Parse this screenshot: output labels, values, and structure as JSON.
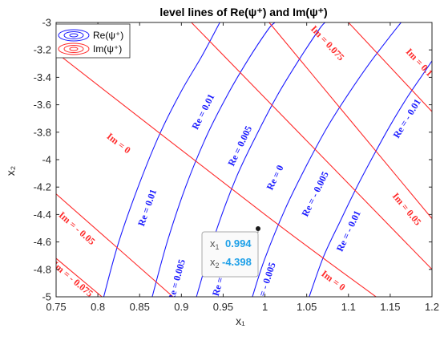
{
  "chart_data": {
    "type": "contour",
    "title": "level lines of Re(ψ⁺) and Im(ψ⁺)",
    "xlabel": "x₁",
    "ylabel": "x₂",
    "xlim": [
      0.75,
      1.2
    ],
    "ylim": [
      -5,
      -3
    ],
    "xticks": [
      "0.75",
      "0.8",
      "0.85",
      "0.9",
      "0.95",
      "1",
      "1.05",
      "1.1",
      "1.15",
      "1.2"
    ],
    "yticks": [
      "-3",
      "-3.2",
      "-3.4",
      "-3.6",
      "-3.8",
      "-4",
      "-4.2",
      "-4.4",
      "-4.6",
      "-4.8",
      "-5"
    ],
    "grid": false,
    "legend": {
      "placement": "top-left",
      "entries": [
        {
          "name": "Re(ψ⁺)",
          "color": "#1a1aff"
        },
        {
          "name": "Im(ψ⁺)",
          "color": "#ff2a2a"
        }
      ]
    },
    "series": [
      {
        "name": "Re(ψ⁺)",
        "color": "#1a1aff",
        "levels": [
          {
            "label": "Re = 0.01",
            "points": [
              [
                0.807,
                -5.0
              ],
              [
                0.825,
                -4.6
              ],
              [
                0.85,
                -4.17
              ],
              [
                0.875,
                -3.8
              ],
              [
                0.9,
                -3.5
              ],
              [
                0.925,
                -3.24
              ],
              [
                0.946,
                -3.0
              ]
            ]
          },
          {
            "label": "Re = 0.005",
            "points": [
              [
                0.865,
                -5.0
              ],
              [
                0.883,
                -4.6
              ],
              [
                0.905,
                -4.2
              ],
              [
                0.93,
                -3.83
              ],
              [
                0.955,
                -3.53
              ],
              [
                0.98,
                -3.27
              ],
              [
                1.004,
                -3.05
              ],
              [
                1.012,
                -3.0
              ]
            ]
          },
          {
            "label": "Re = 0",
            "points": [
              [
                0.918,
                -5.0
              ],
              [
                0.94,
                -4.55
              ],
              [
                0.965,
                -4.14
              ],
              [
                0.99,
                -3.82
              ],
              [
                1.015,
                -3.53
              ],
              [
                1.04,
                -3.28
              ],
              [
                1.065,
                -3.05
              ],
              [
                1.072,
                -3.0
              ]
            ]
          },
          {
            "label": "Re = - 0.005",
            "points": [
              [
                0.985,
                -5.0
              ],
              [
                1.0,
                -4.72
              ],
              [
                1.025,
                -4.35
              ],
              [
                1.05,
                -4.04
              ],
              [
                1.075,
                -3.76
              ],
              [
                1.1,
                -3.52
              ],
              [
                1.125,
                -3.3
              ],
              [
                1.15,
                -3.1
              ],
              [
                1.163,
                -3.0
              ]
            ]
          },
          {
            "label": "Re = - 0.01",
            "points": [
              [
                1.053,
                -5.0
              ],
              [
                1.07,
                -4.71
              ],
              [
                1.09,
                -4.45
              ],
              [
                1.11,
                -4.2
              ],
              [
                1.13,
                -3.97
              ],
              [
                1.15,
                -3.75
              ],
              [
                1.17,
                -3.55
              ],
              [
                1.19,
                -3.37
              ],
              [
                1.2,
                -3.28
              ]
            ]
          }
        ]
      },
      {
        "name": "Im(ψ⁺)",
        "color": "#ff2a2a",
        "levels": [
          {
            "label": "Im = 0.1",
            "points": [
              [
                1.1,
                -3.0
              ],
              [
                1.2,
                -3.65
              ]
            ]
          },
          {
            "label": "Im = 0.075",
            "points": [
              [
                1.005,
                -3.0
              ],
              [
                1.2,
                -4.43
              ]
            ]
          },
          {
            "label": "Im = 0.05",
            "points": [
              [
                0.912,
                -3.0
              ],
              [
                1.2,
                -4.8
              ]
            ]
          },
          {
            "label": "Im = 0",
            "points": [
              [
                0.75,
                -3.22
              ],
              [
                1.0,
                -4.4
              ],
              [
                1.133,
                -5.0
              ]
            ]
          },
          {
            "label": "Im = - 0.05",
            "points": [
              [
                0.75,
                -4.25
              ],
              [
                0.89,
                -5.0
              ]
            ]
          },
          {
            "label": "Im = - 0.075",
            "points": [
              [
                0.75,
                -4.72
              ],
              [
                0.805,
                -5.0
              ]
            ]
          }
        ]
      }
    ],
    "contour_labels": [
      {
        "text": "Im = 0.05",
        "x": 0.8,
        "y": -3.14,
        "color": "#ff2a2a"
      },
      {
        "text": "Im = 0.075",
        "x": 1.075,
        "y": -3.15,
        "color": "#ff2a2a"
      },
      {
        "text": "Im = 0.1",
        "x": 1.185,
        "y": -3.29,
        "color": "#ff2a2a"
      },
      {
        "text": "Im = 0",
        "x": 0.825,
        "y": -3.88,
        "color": "#ff2a2a"
      },
      {
        "text": "Im = 0.05",
        "x": 1.17,
        "y": -4.36,
        "color": "#ff2a2a"
      },
      {
        "text": "Im = - 0.05",
        "x": 0.775,
        "y": -4.5,
        "color": "#ff2a2a"
      },
      {
        "text": "Im = - 0.075",
        "x": 0.77,
        "y": -4.87,
        "color": "#ff2a2a"
      },
      {
        "text": "Im = 0",
        "x": 1.082,
        "y": -4.88,
        "color": "#ff2a2a"
      },
      {
        "text": "Re = 0.01",
        "x": 0.926,
        "y": -3.65,
        "color": "#1a1aff"
      },
      {
        "text": "Re = 0.005",
        "x": 0.97,
        "y": -3.9,
        "color": "#1a1aff"
      },
      {
        "text": "Re = 0",
        "x": 1.012,
        "y": -4.13,
        "color": "#1a1aff"
      },
      {
        "text": "Re = - 0.005",
        "x": 1.06,
        "y": -4.25,
        "color": "#1a1aff"
      },
      {
        "text": "Re = - 0.01",
        "x": 1.17,
        "y": -3.7,
        "color": "#1a1aff"
      },
      {
        "text": "Re = 0.01",
        "x": 0.859,
        "y": -4.35,
        "color": "#1a1aff"
      },
      {
        "text": "Re = 0.005",
        "x": 0.894,
        "y": -4.88,
        "color": "#1a1aff"
      },
      {
        "text": "Re = 0",
        "x": 0.945,
        "y": -4.9,
        "color": "#1a1aff"
      },
      {
        "text": "Re = - 0.005",
        "x": 1.0,
        "y": -4.92,
        "color": "#1a1aff"
      },
      {
        "text": "Re = - 0.01",
        "x": 1.1,
        "y": -4.52,
        "color": "#1a1aff"
      }
    ],
    "datatip": {
      "x": 0.994,
      "y": -4.398,
      "x_label": "x",
      "x_sub": "1",
      "y_label": "x",
      "y_sub": "2",
      "x_text": "0.994",
      "y_text": "-4.398"
    }
  }
}
